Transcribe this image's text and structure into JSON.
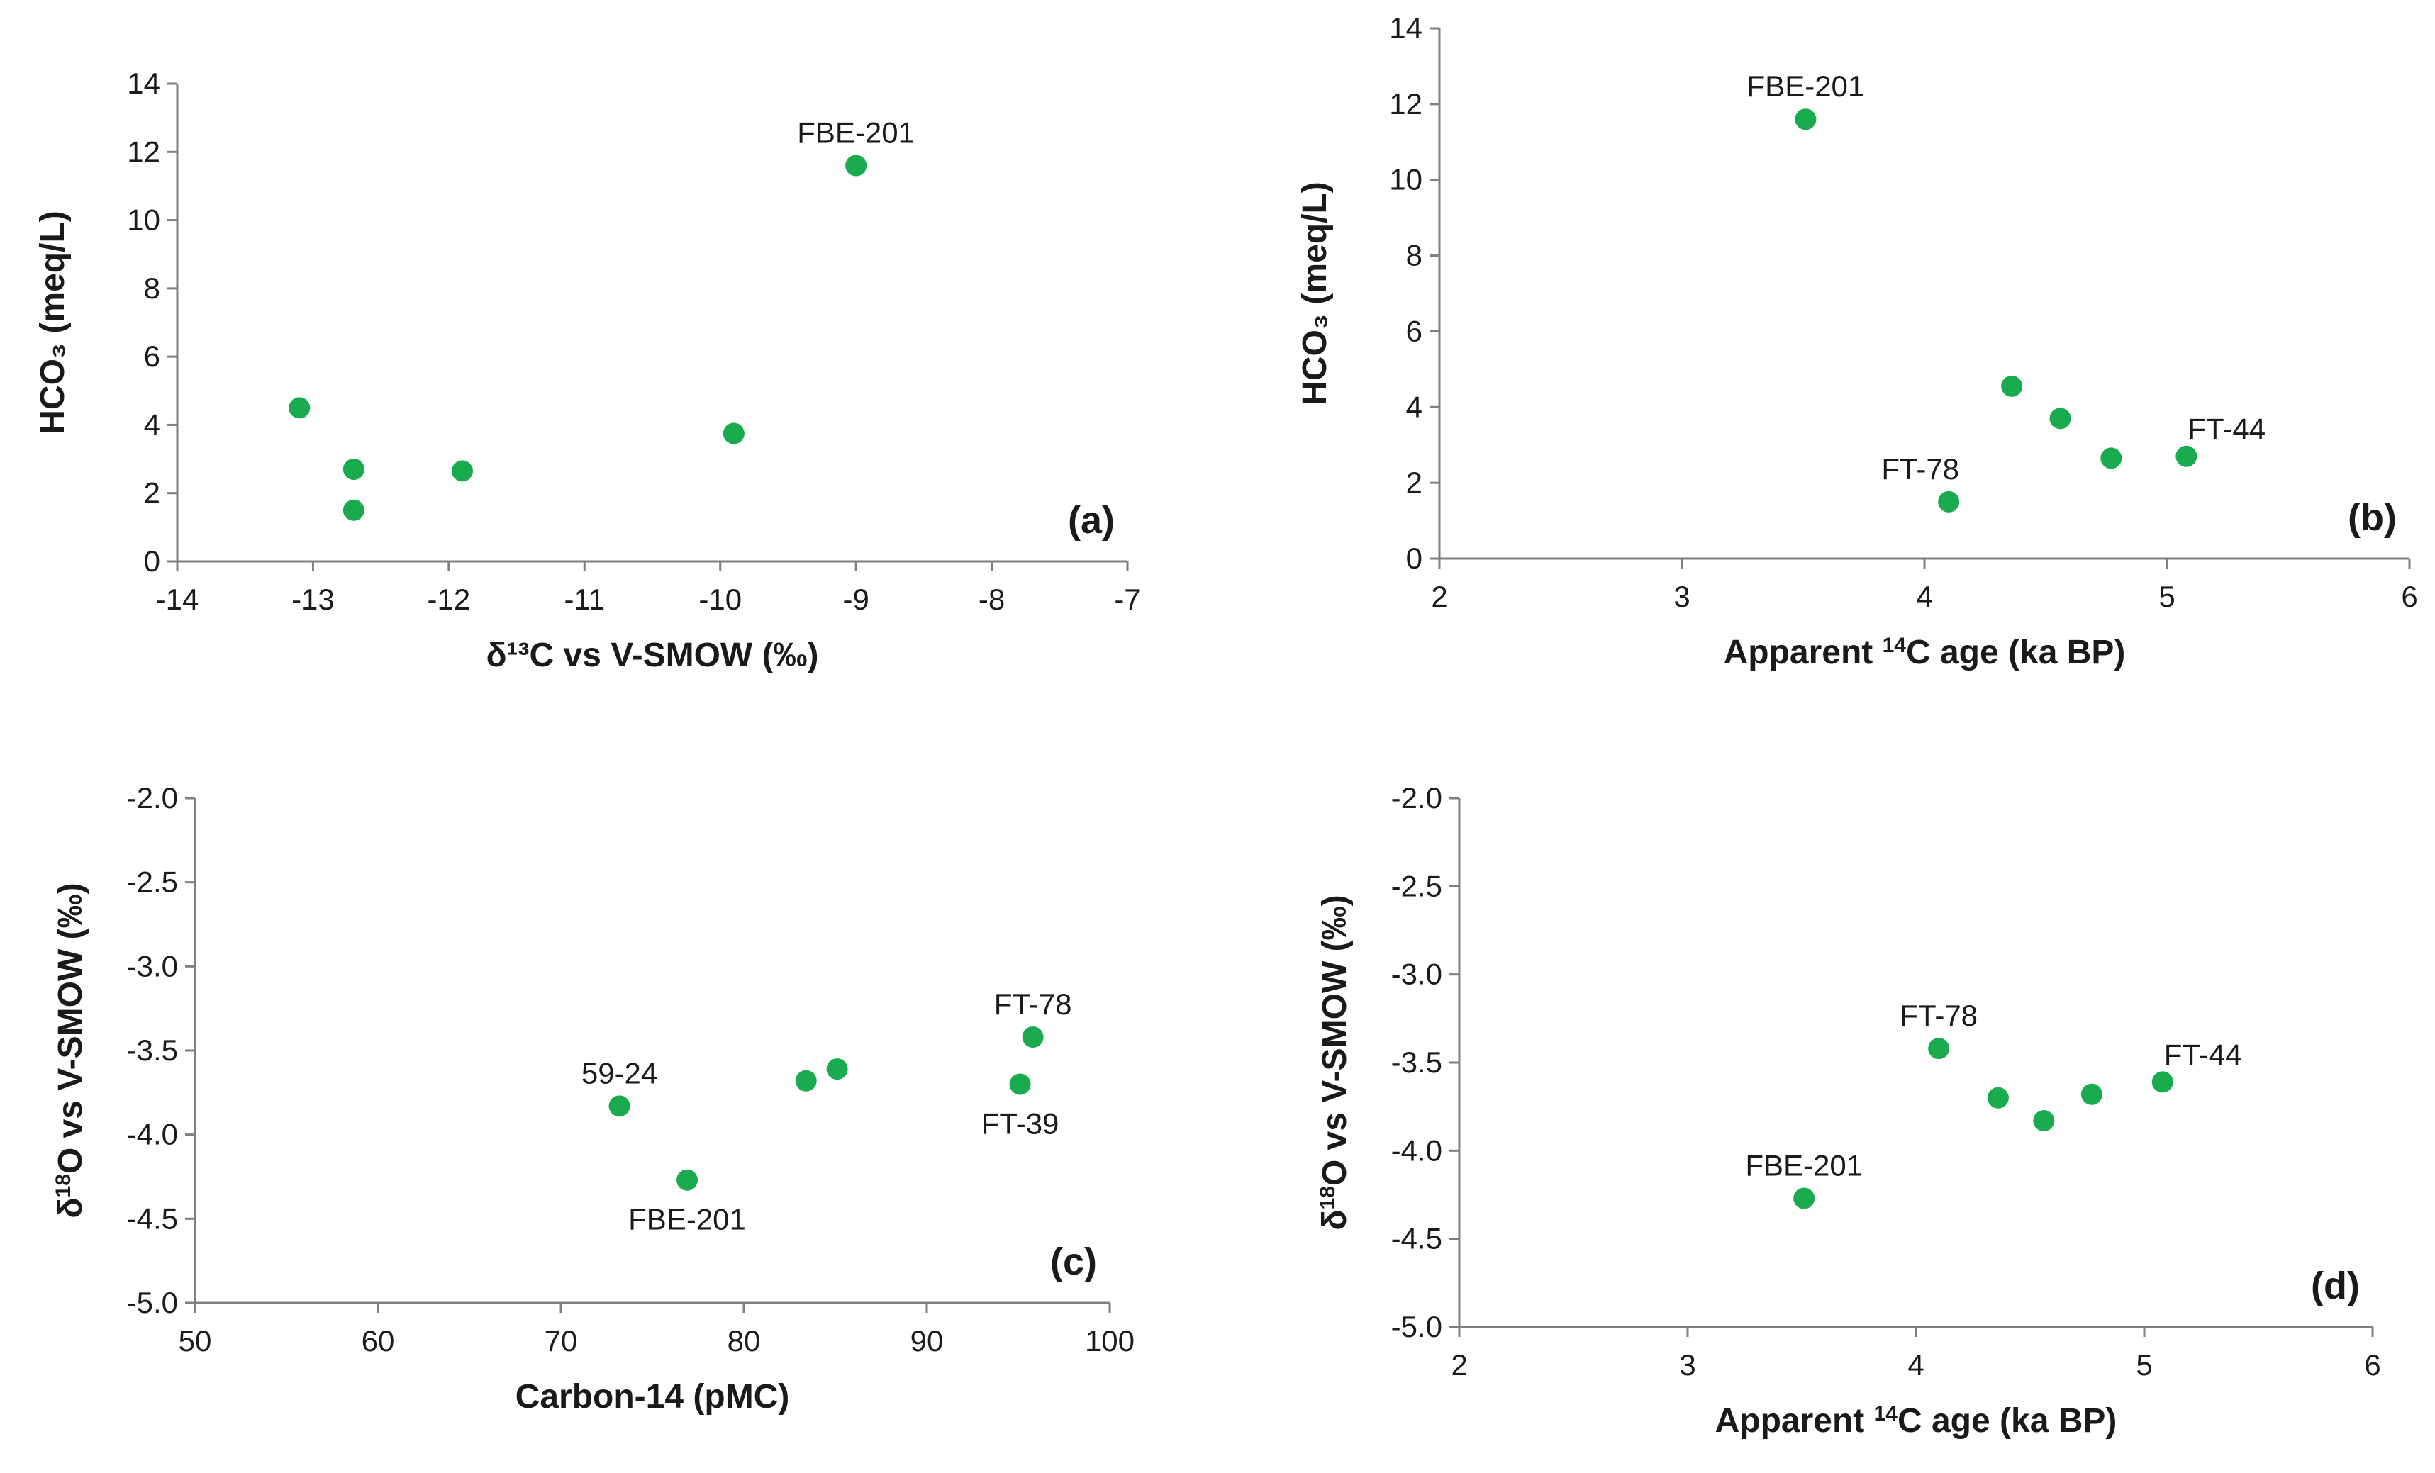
{
  "marker_color": "#1aab4f",
  "axis_color": "#7f7f7f",
  "chart_data": [
    {
      "id": "a",
      "type": "scatter",
      "panel_label": "(a)",
      "xlabel": "δ¹³C  vs V-SMOW (‰)",
      "ylabel": "HCO₃ (meq/L)",
      "xlim": [
        -14,
        -7
      ],
      "ylim": [
        0,
        14
      ],
      "xticks": [
        -14,
        -13,
        -12,
        -11,
        -10,
        -9,
        -8,
        -7
      ],
      "yticks": [
        0,
        2,
        4,
        6,
        8,
        10,
        12,
        14
      ],
      "x_decimals": 0,
      "y_decimals": 0,
      "grid": false,
      "points": [
        {
          "x": -13.1,
          "y": 4.5
        },
        {
          "x": -12.7,
          "y": 2.7
        },
        {
          "x": -12.7,
          "y": 1.5
        },
        {
          "x": -11.9,
          "y": 2.65
        },
        {
          "x": -9.9,
          "y": 3.75
        },
        {
          "x": -9.0,
          "y": 11.6
        }
      ],
      "annotations": [
        {
          "text": "FBE-201",
          "x": -9.0,
          "y": 11.6,
          "pos": "above"
        }
      ]
    },
    {
      "id": "b",
      "type": "scatter",
      "panel_label": "(b)",
      "xlabel_pre": "Apparent ",
      "xlabel_sup": "14",
      "xlabel_post": "C age (ka BP)",
      "ylabel": "HCO₃ (meq/L)",
      "xlim": [
        2,
        6
      ],
      "ylim": [
        0,
        14
      ],
      "xticks": [
        2,
        3,
        4,
        5,
        6
      ],
      "yticks": [
        0,
        2,
        4,
        6,
        8,
        10,
        12,
        14
      ],
      "x_decimals": 0,
      "y_decimals": 0,
      "grid": false,
      "points": [
        {
          "x": 3.51,
          "y": 11.6
        },
        {
          "x": 4.1,
          "y": 1.5
        },
        {
          "x": 4.36,
          "y": 4.55
        },
        {
          "x": 4.56,
          "y": 3.7
        },
        {
          "x": 4.77,
          "y": 2.65
        },
        {
          "x": 5.08,
          "y": 2.7
        }
      ],
      "annotations": [
        {
          "text": "FBE-201",
          "x": 3.51,
          "y": 11.6,
          "pos": "above"
        },
        {
          "text": "FT-78",
          "x": 4.1,
          "y": 1.5,
          "pos": "above-left"
        },
        {
          "text": "FT-44",
          "x": 5.08,
          "y": 2.7,
          "pos": "above-right"
        }
      ]
    },
    {
      "id": "c",
      "type": "scatter",
      "panel_label": "(c)",
      "xlabel": "Carbon-14 (pMC)",
      "ylabel_pre": "δ",
      "ylabel_sup": "18",
      "ylabel_post": "O vs V-SMOW (‰)",
      "xlim": [
        50,
        100
      ],
      "ylim": [
        -5.0,
        -2.0
      ],
      "xticks": [
        50,
        60,
        70,
        80,
        90,
        100
      ],
      "yticks": [
        -5.0,
        -4.5,
        -4.0,
        -3.5,
        -3.0,
        -2.5,
        -2.0
      ],
      "x_decimals": 0,
      "y_decimals": 1,
      "grid": false,
      "points": [
        {
          "x": 73.2,
          "y": -3.83
        },
        {
          "x": 76.9,
          "y": -4.27
        },
        {
          "x": 83.4,
          "y": -3.68
        },
        {
          "x": 85.1,
          "y": -3.61
        },
        {
          "x": 95.1,
          "y": -3.7
        },
        {
          "x": 95.8,
          "y": -3.42
        }
      ],
      "annotations": [
        {
          "text": "59-24",
          "x": 73.2,
          "y": -3.83,
          "pos": "above"
        },
        {
          "text": "FBE-201",
          "x": 76.9,
          "y": -4.27,
          "pos": "below"
        },
        {
          "text": "FT-78",
          "x": 95.8,
          "y": -3.42,
          "pos": "above"
        },
        {
          "text": "FT-39",
          "x": 95.1,
          "y": -3.7,
          "pos": "below"
        }
      ]
    },
    {
      "id": "d",
      "type": "scatter",
      "panel_label": "(d)",
      "xlabel_pre": "Apparent ",
      "xlabel_sup": "14",
      "xlabel_post": "C age (ka BP)",
      "ylabel_pre": "δ",
      "ylabel_sup": "18",
      "ylabel_post": "O vs V-SMOW (‰)",
      "xlim": [
        2,
        6
      ],
      "ylim": [
        -5.0,
        -2.0
      ],
      "xticks": [
        2,
        3,
        4,
        5,
        6
      ],
      "yticks": [
        -5.0,
        -4.5,
        -4.0,
        -3.5,
        -3.0,
        -2.5,
        -2.0
      ],
      "x_decimals": 0,
      "y_decimals": 1,
      "grid": false,
      "points": [
        {
          "x": 3.51,
          "y": -4.27
        },
        {
          "x": 4.1,
          "y": -3.42
        },
        {
          "x": 4.36,
          "y": -3.7
        },
        {
          "x": 4.56,
          "y": -3.83
        },
        {
          "x": 4.77,
          "y": -3.68
        },
        {
          "x": 5.08,
          "y": -3.61
        }
      ],
      "annotations": [
        {
          "text": "FBE-201",
          "x": 3.51,
          "y": -4.27,
          "pos": "above"
        },
        {
          "text": "FT-78",
          "x": 4.1,
          "y": -3.42,
          "pos": "above"
        },
        {
          "text": "FT-44",
          "x": 5.08,
          "y": -3.61,
          "pos": "above-right"
        }
      ]
    }
  ]
}
